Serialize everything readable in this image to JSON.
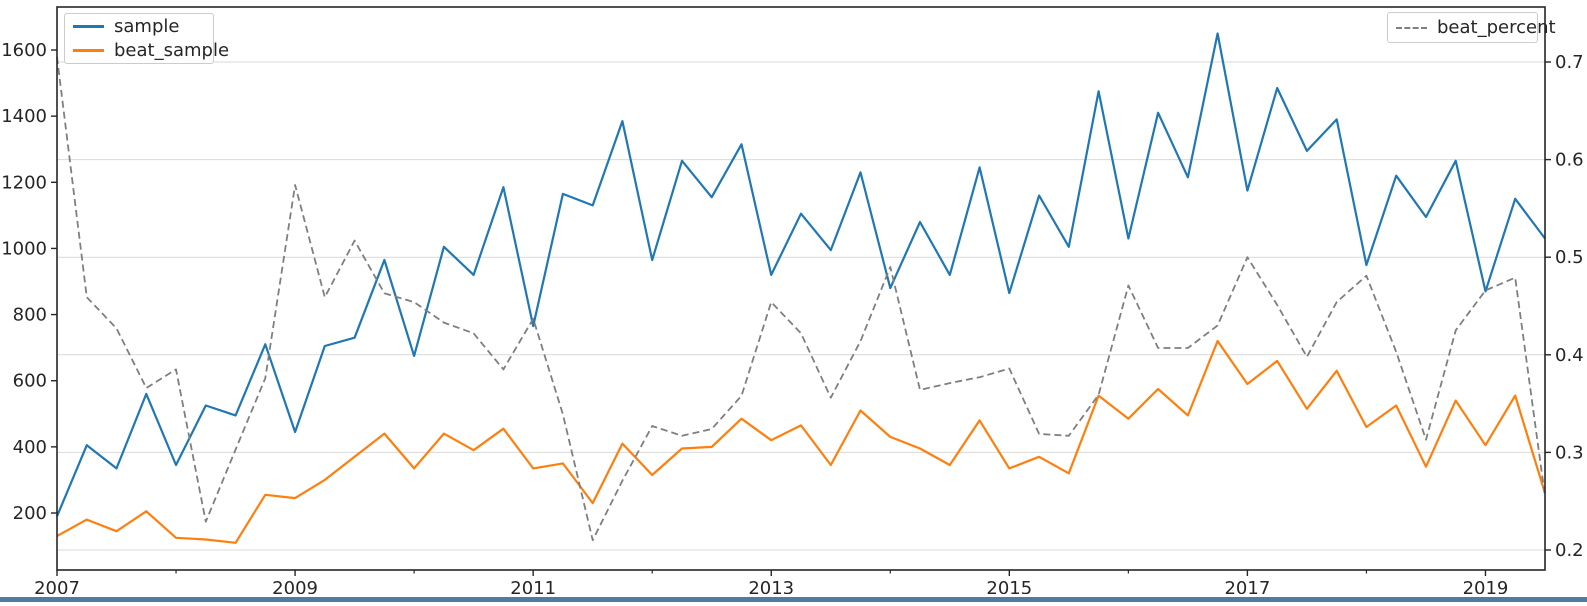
{
  "window": {
    "background_color": "#ffffff",
    "bottom_bar_color": "#4e7ba3"
  },
  "chart_data": {
    "type": "line",
    "title": "",
    "xlabel": "",
    "ylabel_left": "",
    "ylabel_right": "",
    "x_start": 2007.0,
    "x_step": 0.25,
    "x_range": [
      2007.0,
      2019.5
    ],
    "x_major_tick_years": [
      2007,
      2009,
      2011,
      2013,
      2015,
      2017,
      2019
    ],
    "x_major_tick_labels": [
      "2007",
      "2009",
      "2011",
      "2013",
      "2015",
      "2017",
      "2019"
    ],
    "x_minor_tick_years": [
      2008,
      2010,
      2012,
      2014,
      2016,
      2018
    ],
    "left_axis": {
      "ticks": [
        200,
        400,
        600,
        800,
        1000,
        1200,
        1400,
        1600
      ],
      "tick_labels": [
        "200",
        "400",
        "600",
        "800",
        "1000",
        "1200",
        "1400",
        "1600"
      ],
      "range": [
        28,
        1730
      ]
    },
    "right_axis": {
      "ticks": [
        0.2,
        0.3,
        0.4,
        0.5,
        0.6,
        0.7
      ],
      "tick_labels": [
        "0.2",
        "0.3",
        "0.4",
        "0.5",
        "0.6",
        "0.7"
      ],
      "range": [
        0.18,
        0.756
      ]
    },
    "grid": {
      "horizontal": true,
      "vertical": false,
      "color": "#d9d9d9",
      "follows": "right-axis-ticks"
    },
    "legend_left_position": "upper left",
    "legend_right_position": "upper right",
    "series": [
      {
        "name": "sample",
        "color": "#1f77b4",
        "style": "solid",
        "axis": "left",
        "values": [
          190,
          405,
          335,
          560,
          345,
          525,
          495,
          710,
          445,
          705,
          730,
          965,
          675,
          1005,
          920,
          1185,
          765,
          1165,
          1130,
          1385,
          965,
          1265,
          1155,
          1315,
          920,
          1105,
          995,
          1230,
          880,
          1080,
          920,
          1245,
          865,
          1160,
          1005,
          1475,
          1030,
          1410,
          1215,
          1650,
          1175,
          1485,
          1295,
          1390,
          950,
          1220,
          1095,
          1265,
          870,
          1150,
          1030
        ]
      },
      {
        "name": "beat_sample",
        "color": "#ff7f0e",
        "style": "solid",
        "axis": "left",
        "values": [
          130,
          180,
          145,
          205,
          125,
          120,
          110,
          255,
          245,
          300,
          370,
          440,
          335,
          440,
          390,
          455,
          335,
          350,
          230,
          410,
          315,
          395,
          400,
          485,
          420,
          465,
          345,
          510,
          430,
          395,
          345,
          480,
          335,
          370,
          320,
          555,
          485,
          575,
          495,
          720,
          590,
          660,
          515,
          630,
          460,
          525,
          340,
          540,
          405,
          555,
          260
        ]
      },
      {
        "name": "beat_percent",
        "color": "#7f7f7f",
        "style": "dashed",
        "axis": "right",
        "values": [
          0.705,
          0.459,
          0.427,
          0.366,
          0.385,
          0.229,
          0.303,
          0.376,
          0.574,
          0.459,
          0.517,
          0.463,
          0.454,
          0.433,
          0.422,
          0.385,
          0.437,
          0.339,
          0.21,
          0.271,
          0.327,
          0.317,
          0.324,
          0.358,
          0.454,
          0.422,
          0.356,
          0.414,
          0.49,
          0.364,
          0.371,
          0.377,
          0.386,
          0.319,
          0.317,
          0.359,
          0.471,
          0.407,
          0.407,
          0.43,
          0.5,
          0.451,
          0.398,
          0.454,
          0.481,
          0.403,
          0.313,
          0.425,
          0.466,
          0.479,
          0.255
        ]
      }
    ]
  }
}
